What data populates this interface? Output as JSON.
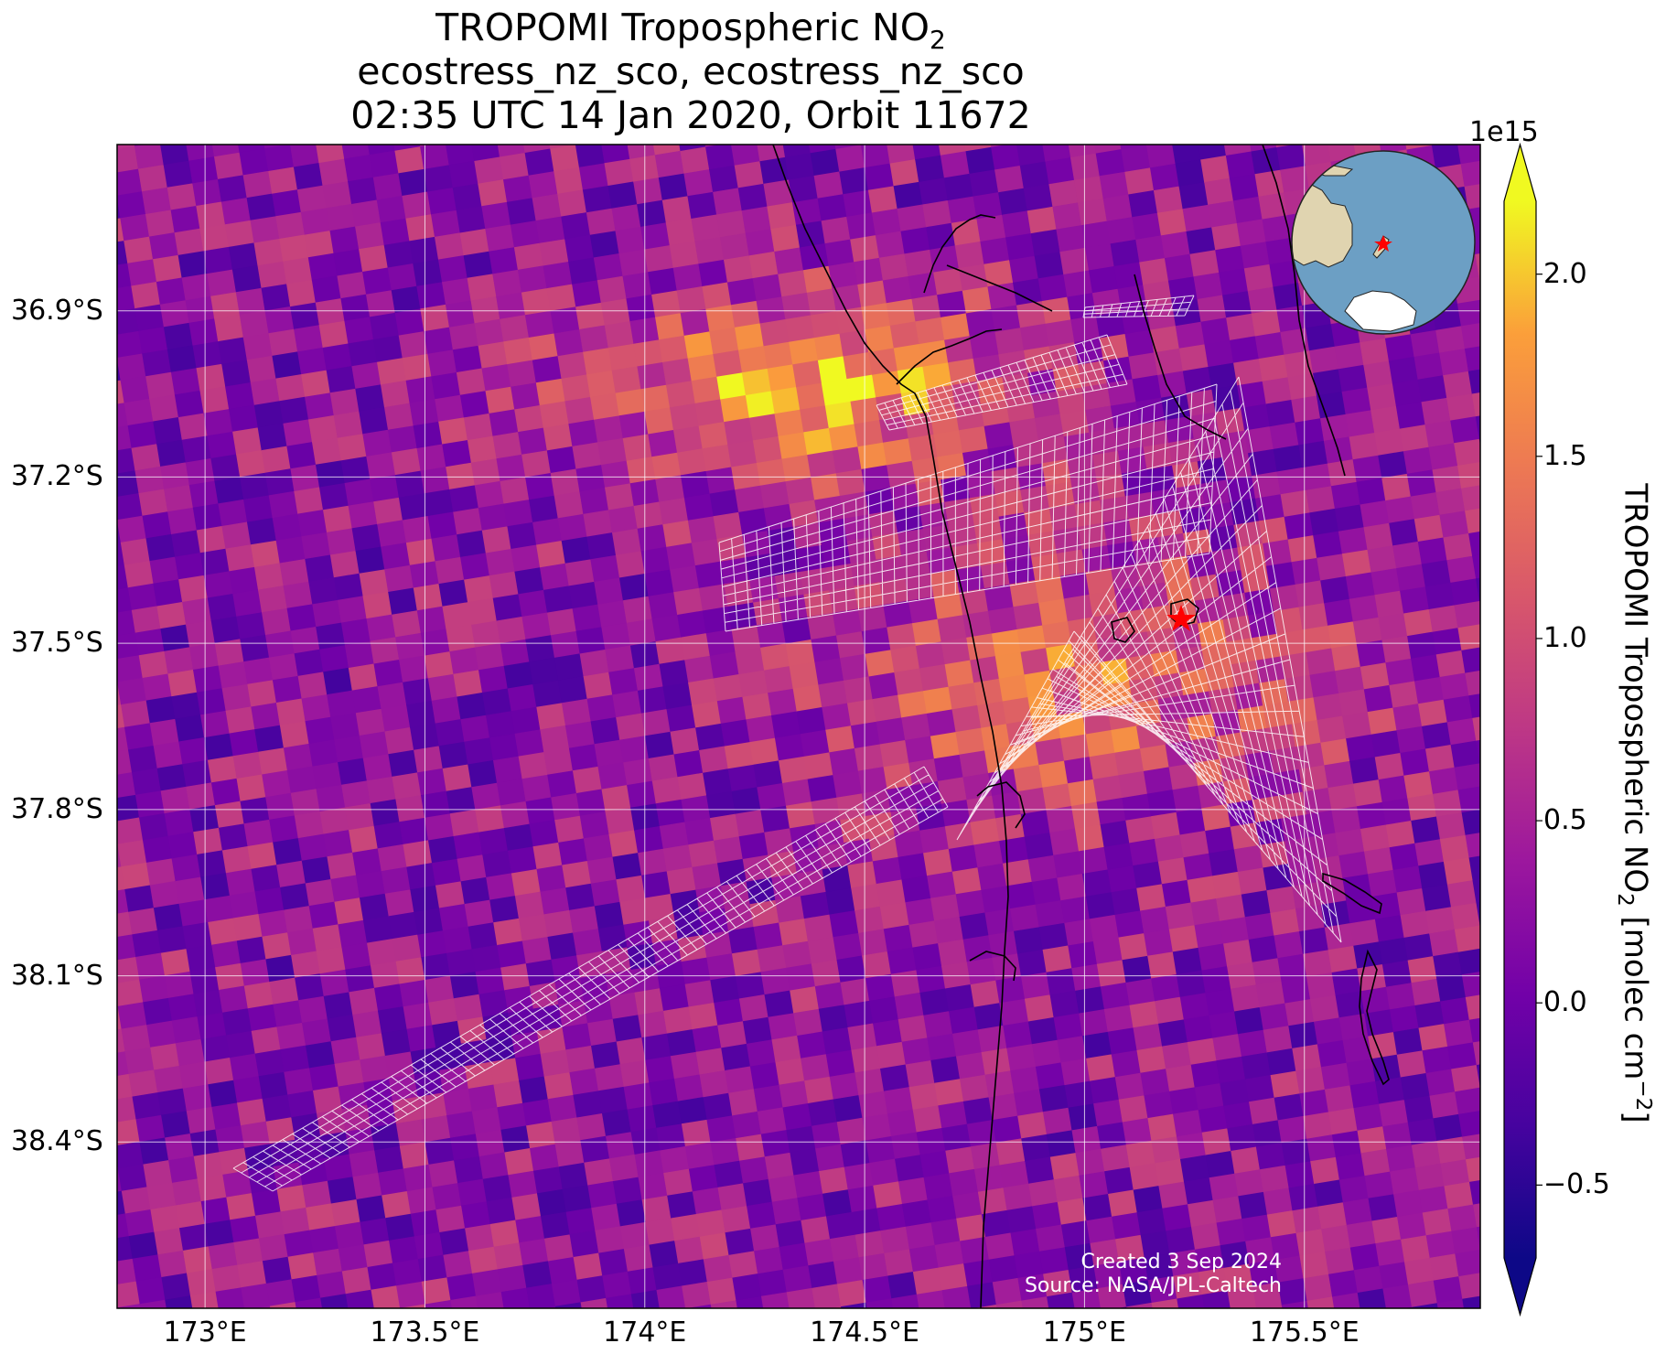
{
  "title": {
    "line1_prefix": "TROPOMI Tropospheric NO",
    "line1_sub": "2",
    "line2": "ecostress_nz_sco, ecostress_nz_sco",
    "line3": "02:35 UTC 14 Jan 2020, Orbit 11672"
  },
  "map": {
    "lon_range": [
      172.8,
      175.9
    ],
    "lat_range": [
      -38.7,
      -36.6
    ],
    "lon_ticks": [
      {
        "value": 173.0,
        "label": "173°E"
      },
      {
        "value": 173.5,
        "label": "173.5°E"
      },
      {
        "value": 174.0,
        "label": "174°E"
      },
      {
        "value": 174.5,
        "label": "174.5°E"
      },
      {
        "value": 175.0,
        "label": "175°E"
      },
      {
        "value": 175.5,
        "label": "175.5°E"
      }
    ],
    "lat_ticks": [
      {
        "value": -36.9,
        "label": "36.9°S"
      },
      {
        "value": -37.2,
        "label": "37.2°S"
      },
      {
        "value": -37.5,
        "label": "37.5°S"
      },
      {
        "value": -37.8,
        "label": "37.8°S"
      },
      {
        "value": -38.1,
        "label": "38.1°S"
      },
      {
        "value": -38.4,
        "label": "38.4°S"
      }
    ],
    "gridlines": true,
    "site_marker": {
      "lon": 175.22,
      "lat": -37.47,
      "symbol": "star",
      "color": "#ff0000"
    },
    "colormap": "plasma",
    "colors": {
      "grid": "#ffffff",
      "coastline": "#000000",
      "swath": "#ffffff",
      "marker": "#ff0000"
    },
    "inset_globe": {
      "ocean": "#6c9fc4",
      "land": "#e0d4b0",
      "ice": "#ffffff",
      "marker_color": "#ff0000"
    }
  },
  "colorbar": {
    "vmin": -0.7,
    "vmax": 2.2,
    "multiplier": "1e15",
    "extend": "both",
    "ticks": [
      {
        "value": -0.5,
        "label": "−0.5"
      },
      {
        "value": 0.0,
        "label": "0.0"
      },
      {
        "value": 0.5,
        "label": "0.5"
      },
      {
        "value": 1.0,
        "label": "1.0"
      },
      {
        "value": 1.5,
        "label": "1.5"
      },
      {
        "value": 2.0,
        "label": "2.0"
      }
    ],
    "label_prefix": "TROPOMI Tropospheric NO",
    "label_sub": "2",
    "label_mid": " [molec cm",
    "label_sup": "−2",
    "label_end": "]"
  },
  "credits": {
    "created": "Created 3 Sep 2024",
    "source": "Source: NASA/JPL-Caltech"
  }
}
